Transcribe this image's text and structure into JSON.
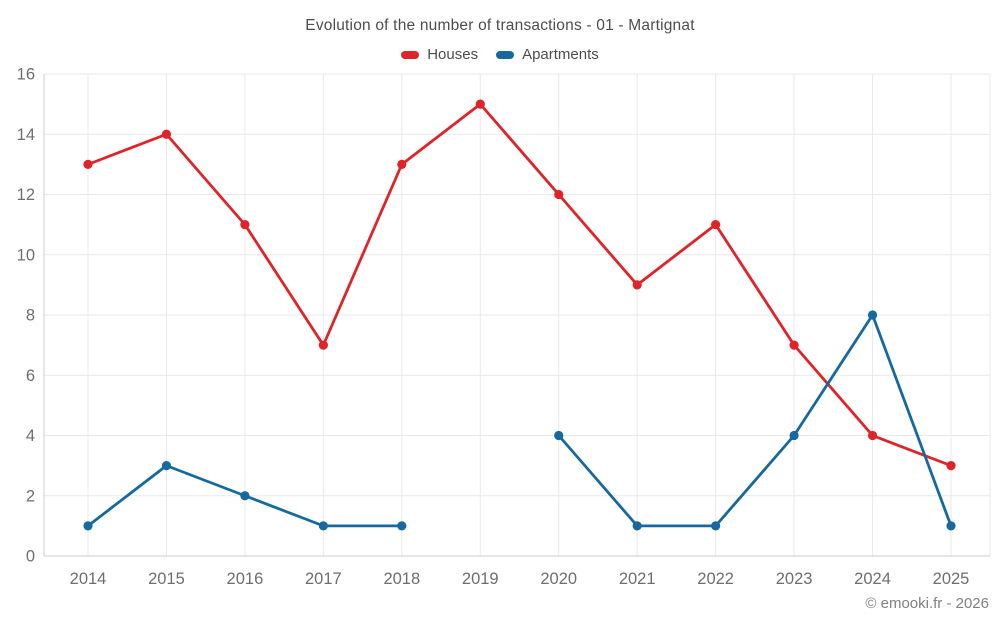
{
  "page": {
    "footer": "© emooki.fr - 2026"
  },
  "chart_data": {
    "type": "line",
    "title": "Evolution of the number of transactions - 01 - Martignat",
    "categories": [
      "2014",
      "2015",
      "2016",
      "2017",
      "2018",
      "2019",
      "2020",
      "2021",
      "2022",
      "2023",
      "2024",
      "2025"
    ],
    "series": [
      {
        "name": "Houses",
        "color": "#e02328",
        "values": [
          13,
          14,
          11,
          7,
          13,
          15,
          12,
          9,
          11,
          7,
          4,
          3
        ]
      },
      {
        "name": "Apartments",
        "color": "#16699e",
        "values": [
          1,
          3,
          2,
          1,
          1,
          null,
          4,
          1,
          1,
          4,
          8,
          1
        ]
      }
    ],
    "xlabel": "",
    "ylabel": "",
    "ylim": [
      0,
      16
    ],
    "y_tick_step": 2,
    "y_ticks": [
      0,
      2,
      4,
      6,
      8,
      10,
      12,
      14,
      16
    ],
    "grid": true,
    "legend_position": "top",
    "marker": "circle",
    "gap_years": [
      "2019"
    ],
    "colors": {
      "grid": "#e9e9e9",
      "axis": "#cccccc",
      "tick_label": "#6e6e6e",
      "title_text": "#4d4d4d",
      "footer_text": "#808080",
      "background": "#ffffff"
    }
  }
}
